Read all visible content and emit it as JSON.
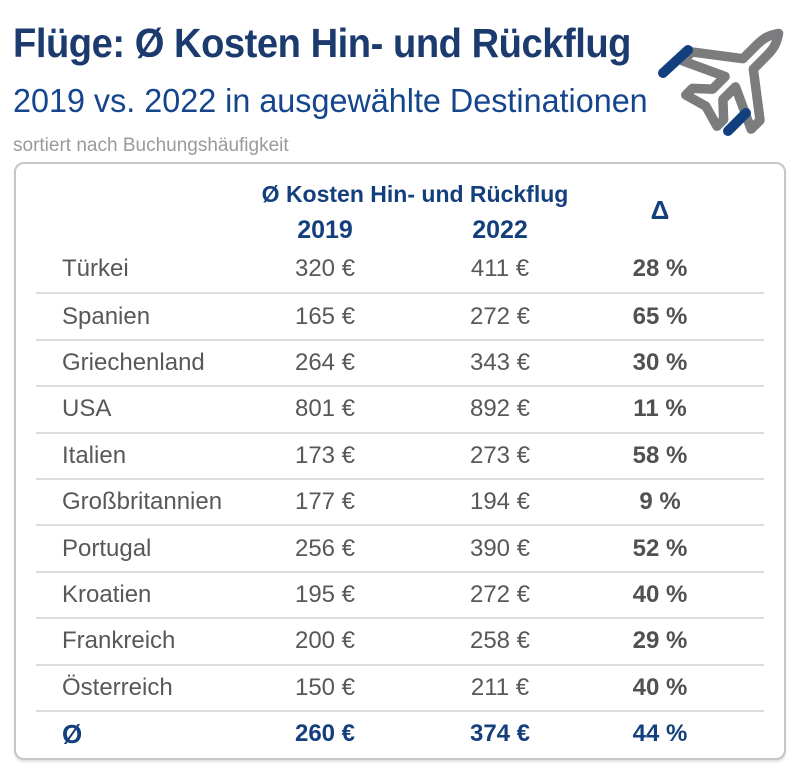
{
  "header": {
    "title": "Flüge: Ø Kosten Hin- und Rückflug",
    "subtitle": "2019 vs. 2022 in ausgewählte Destinationen",
    "note": "sortiert nach Buchungshäufigkeit"
  },
  "table": {
    "col_group_header": "Ø Kosten Hin- und Rückflug",
    "col_headers": [
      "2019",
      "2022"
    ],
    "delta_header": "Δ",
    "rows": [
      {
        "destination": "Türkei",
        "y2019": "320 €",
        "y2022": "411 €",
        "delta": "28 %"
      },
      {
        "destination": "Spanien",
        "y2019": "165 €",
        "y2022": "272 €",
        "delta": "65 %"
      },
      {
        "destination": "Griechenland",
        "y2019": "264 €",
        "y2022": "343 €",
        "delta": "30 %"
      },
      {
        "destination": "USA",
        "y2019": "801 €",
        "y2022": "892 €",
        "delta": "11 %"
      },
      {
        "destination": "Italien",
        "y2019": "173 €",
        "y2022": "273 €",
        "delta": "58 %"
      },
      {
        "destination": "Großbritannien",
        "y2019": "177 €",
        "y2022": "194 €",
        "delta": "9 %"
      },
      {
        "destination": "Portugal",
        "y2019": "256 €",
        "y2022": "390 €",
        "delta": "52 %"
      },
      {
        "destination": "Kroatien",
        "y2019": "195 €",
        "y2022": "272 €",
        "delta": "40 %"
      },
      {
        "destination": "Frankreich",
        "y2019": "200 €",
        "y2022": "258 €",
        "delta": "29 %"
      },
      {
        "destination": "Österreich",
        "y2019": "150 €",
        "y2022": "211 €",
        "delta": "40 %"
      }
    ],
    "average_row": {
      "destination": "Ø",
      "y2019": "260 €",
      "y2022": "374 €",
      "delta": "44 %"
    }
  },
  "colors": {
    "title_navy": "#1b3a6e",
    "subtitle_blue": "#15458d",
    "table_navy": "#143f7d",
    "row_gray": "#58585a",
    "note_gray": "#9a9a9a",
    "separator_gray": "#dcdcdc",
    "frame_gray": "#c6c6c6",
    "plane_gray": "#7b7c7e",
    "dash_navy": "#12407e"
  },
  "chart_data": {
    "type": "table",
    "title": "Flüge: Ø Kosten Hin- und Rückflug",
    "subtitle": "2019 vs. 2022 in ausgewählte Destinationen",
    "note": "sortiert nach Buchungshäufigkeit",
    "categories": [
      "Türkei",
      "Spanien",
      "Griechenland",
      "USA",
      "Italien",
      "Großbritannien",
      "Portugal",
      "Kroatien",
      "Frankreich",
      "Österreich"
    ],
    "series": [
      {
        "name": "2019",
        "unit": "€",
        "values": [
          320,
          165,
          264,
          801,
          173,
          177,
          256,
          195,
          200,
          150
        ]
      },
      {
        "name": "2022",
        "unit": "€",
        "values": [
          411,
          272,
          343,
          892,
          273,
          194,
          390,
          272,
          258,
          211
        ]
      },
      {
        "name": "Δ",
        "unit": "%",
        "values": [
          28,
          65,
          30,
          11,
          58,
          9,
          52,
          40,
          29,
          40
        ]
      }
    ],
    "average": {
      "2019": 260,
      "2022": 374,
      "delta_percent": 44
    }
  }
}
